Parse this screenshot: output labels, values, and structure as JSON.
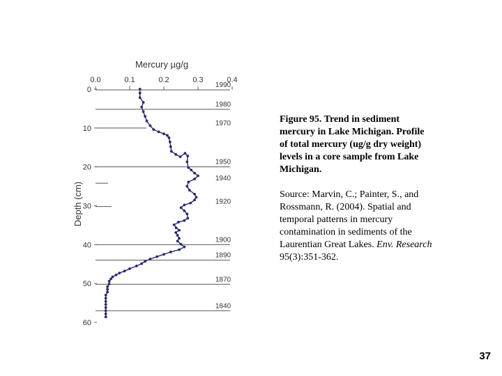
{
  "figure": {
    "title": "Figure 95. Trend in sediment mercury in Lake Michigan. Profile of total mercury (ug/g dry weight) levels in a core sample from Lake Michigan.",
    "source_prefix": "Source: Marvin, C.; Painter, S., and Rossmann, R. (2004). Spatial and temporal patterns in mercury contamination in sediments of the Laurentian Great Lakes. ",
    "source_journal": "Env. Research",
    "source_suffix": " 95(3):351-362."
  },
  "page_number": "37",
  "chart_data": {
    "type": "line",
    "xlabel": "Mercury µg/g",
    "ylabel": "Depth (cm)",
    "x_axis_position": "top",
    "xlim": [
      0.0,
      0.4
    ],
    "ylim": [
      0,
      60
    ],
    "y_inverted": true,
    "xticks": [
      0.0,
      0.1,
      0.2,
      0.3,
      0.4
    ],
    "xtick_labels": [
      "0.0",
      "0.1",
      "0.2",
      "0.3",
      "0.4"
    ],
    "yticks": [
      0,
      10,
      20,
      30,
      40,
      50,
      60
    ],
    "ytick_labels": [
      "0",
      "10",
      "20",
      "30",
      "40",
      "50",
      "60"
    ],
    "series": [
      {
        "color": "#2a2a6e",
        "marker": "dot",
        "points": [
          [
            0.13,
            0.0
          ],
          [
            0.13,
            1.0
          ],
          [
            0.13,
            2.2
          ],
          [
            0.14,
            3.4
          ],
          [
            0.135,
            4.6
          ],
          [
            0.14,
            5.8
          ],
          [
            0.145,
            7.0
          ],
          [
            0.15,
            8.2
          ],
          [
            0.16,
            9.4
          ],
          [
            0.17,
            10.4
          ],
          [
            0.185,
            11.0
          ],
          [
            0.2,
            11.5
          ],
          [
            0.21,
            11.9
          ],
          [
            0.215,
            12.5
          ],
          [
            0.218,
            13.6
          ],
          [
            0.22,
            14.8
          ],
          [
            0.222,
            16.0
          ],
          [
            0.235,
            16.8
          ],
          [
            0.248,
            17.4
          ],
          [
            0.262,
            16.5
          ],
          [
            0.27,
            17.2
          ],
          [
            0.268,
            18.7
          ],
          [
            0.272,
            20.2
          ],
          [
            0.28,
            20.8
          ],
          [
            0.29,
            21.6
          ],
          [
            0.3,
            22.3
          ],
          [
            0.29,
            23.1
          ],
          [
            0.272,
            23.9
          ],
          [
            0.268,
            25.0
          ],
          [
            0.275,
            26.0
          ],
          [
            0.29,
            27.0
          ],
          [
            0.295,
            27.8
          ],
          [
            0.29,
            28.5
          ],
          [
            0.278,
            29.3
          ],
          [
            0.26,
            29.8
          ],
          [
            0.25,
            30.5
          ],
          [
            0.26,
            31.3
          ],
          [
            0.268,
            32.1
          ],
          [
            0.27,
            33.2
          ],
          [
            0.26,
            33.8
          ],
          [
            0.243,
            34.2
          ],
          [
            0.23,
            34.9
          ],
          [
            0.236,
            35.7
          ],
          [
            0.245,
            36.3
          ],
          [
            0.235,
            36.9
          ],
          [
            0.24,
            37.6
          ],
          [
            0.245,
            38.4
          ],
          [
            0.24,
            39.1
          ],
          [
            0.25,
            39.9
          ],
          [
            0.26,
            40.6
          ],
          [
            0.245,
            41.3
          ],
          [
            0.22,
            41.9
          ],
          [
            0.2,
            42.5
          ],
          [
            0.18,
            43.1
          ],
          [
            0.16,
            43.7
          ],
          [
            0.145,
            44.3
          ],
          [
            0.135,
            44.9
          ],
          [
            0.12,
            45.5
          ],
          [
            0.1,
            46.2
          ],
          [
            0.085,
            46.8
          ],
          [
            0.07,
            47.3
          ],
          [
            0.06,
            47.8
          ],
          [
            0.05,
            48.3
          ],
          [
            0.045,
            48.8
          ],
          [
            0.04,
            49.4
          ],
          [
            0.04,
            50.1
          ],
          [
            0.035,
            50.8
          ],
          [
            0.035,
            51.5
          ],
          [
            0.035,
            52.2
          ],
          [
            0.03,
            53.0
          ],
          [
            0.03,
            53.8
          ],
          [
            0.03,
            54.6
          ],
          [
            0.03,
            55.4
          ],
          [
            0.03,
            56.2
          ],
          [
            0.03,
            57.0
          ],
          [
            0.03,
            57.8
          ],
          [
            0.03,
            58.6
          ]
        ]
      }
    ],
    "annotation_years": [
      {
        "label": "1990",
        "depth": 0.2
      },
      {
        "label": "1980",
        "depth": 5.2
      },
      {
        "label": "1970",
        "depth": 10.0
      },
      {
        "label": "1950",
        "depth": 20.0
      },
      {
        "label": "1940",
        "depth": 24.2
      },
      {
        "label": "1920",
        "depth": 30.2
      },
      {
        "label": "1900",
        "depth": 40.0
      },
      {
        "label": "1890",
        "depth": 44.0
      },
      {
        "label": "1870",
        "depth": 50.2
      },
      {
        "label": "1840",
        "depth": 57.0
      }
    ]
  }
}
